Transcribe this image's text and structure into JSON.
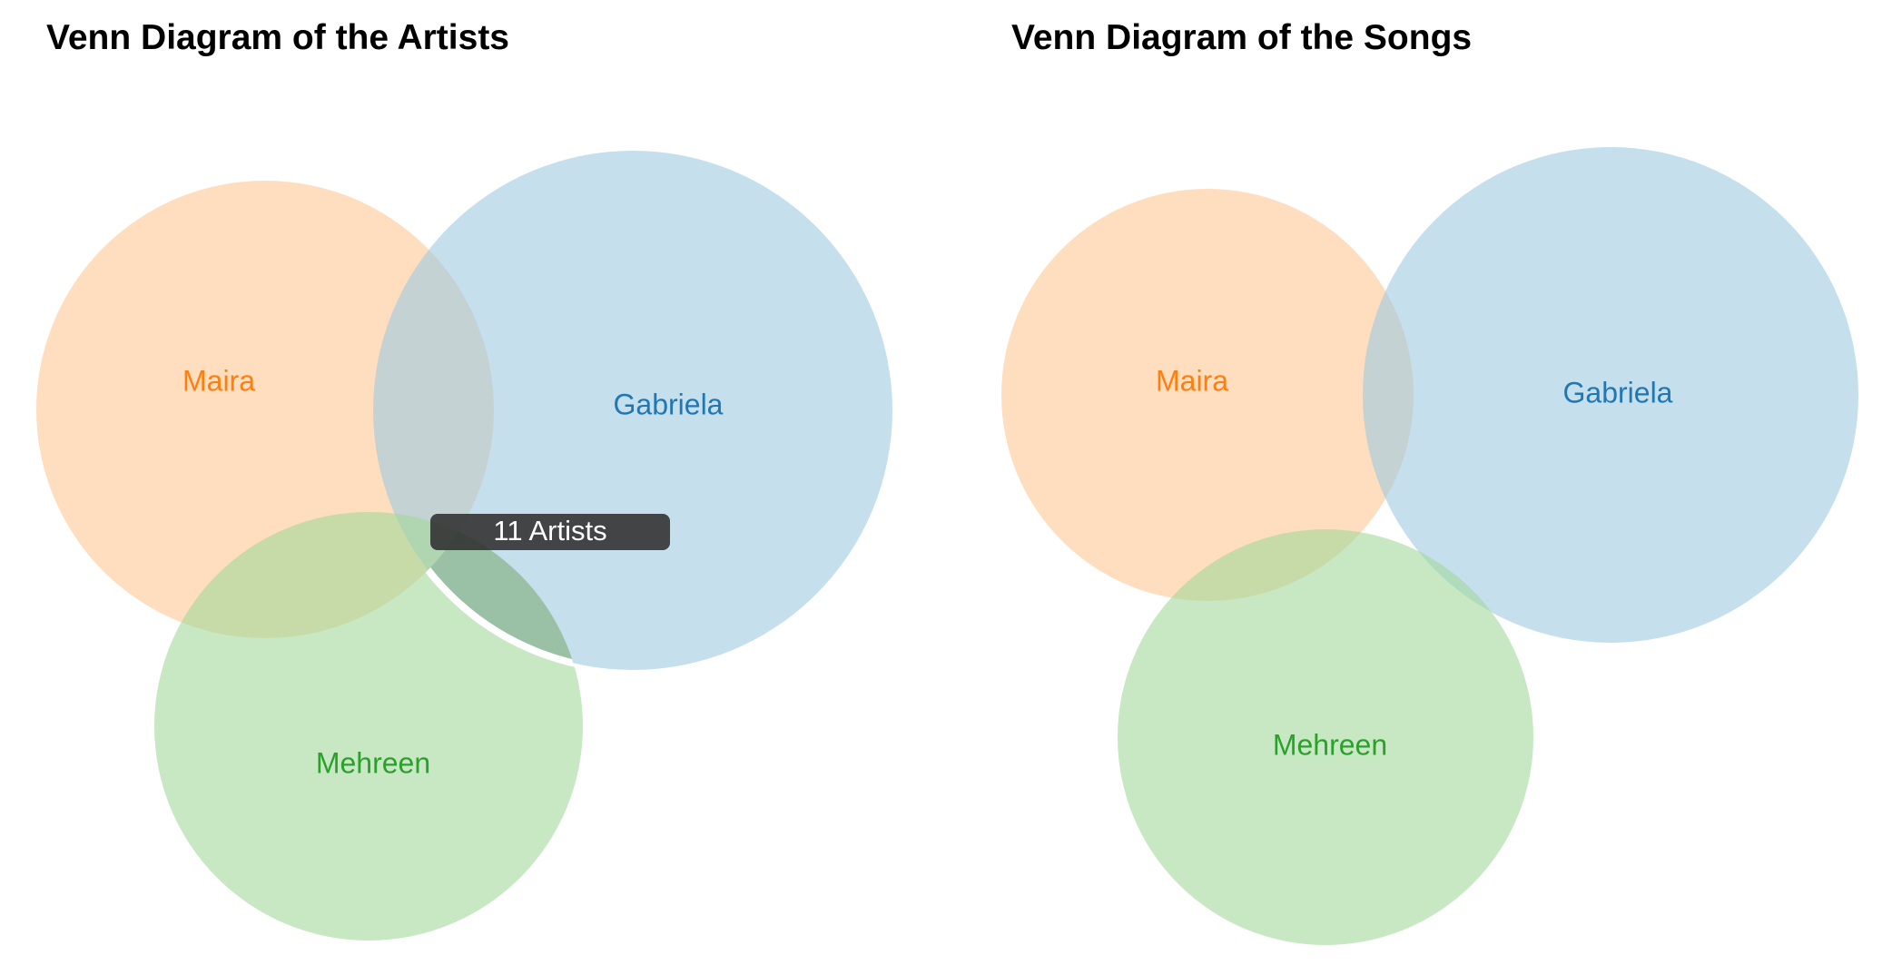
{
  "colors": {
    "orange_fill": "#fdd0a2",
    "blue_fill": "#9ecae1",
    "green_fill": "#a1d99b",
    "orange_text": "#ff7f0e",
    "blue_text": "#1f77b4",
    "green_text": "#2ca02c",
    "tooltip_bg": "#333333"
  },
  "artists": {
    "title": "Venn Diagram of the Artists",
    "sets": {
      "maira": "Maira",
      "gabriela": "Gabriela",
      "mehreen": "Mehreen"
    },
    "tooltip": "11 Artists",
    "highlighted_region": [
      "Gabriela",
      "Mehreen"
    ]
  },
  "songs": {
    "title": "Venn Diagram of the Songs",
    "sets": {
      "maira": "Maira",
      "gabriela": "Gabriela",
      "mehreen": "Mehreen"
    }
  }
}
